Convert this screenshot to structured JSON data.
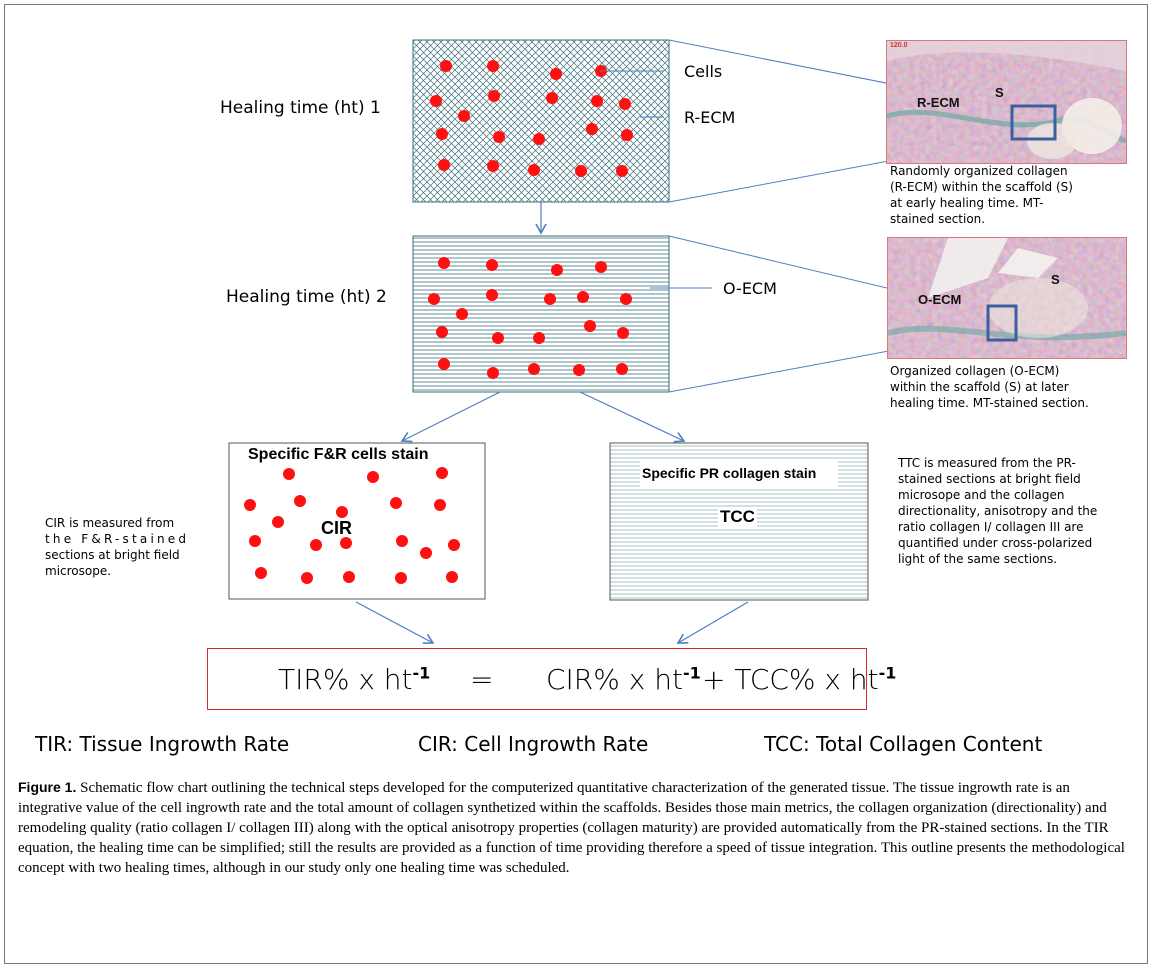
{
  "healing_time_1_label": "Healing time (ht) 1",
  "healing_time_2_label": "Healing time (ht) 2",
  "callouts": {
    "cells": "Cells",
    "r_ecm": "R-ECM",
    "o_ecm": "O-ECM"
  },
  "micrograph_1": {
    "scale_text": "120.0",
    "label_main": "R-ECM",
    "label_scaffold": "S",
    "caption_lines": [
      "Randomly organized collagen",
      "(R-ECM) within the scaffold (S)",
      "at early healing time. MT-",
      "stained section."
    ]
  },
  "micrograph_2": {
    "label_main": "O-ECM",
    "label_scaffold": "S",
    "caption_lines": [
      "Organized collagen (O-ECM)",
      "within the scaffold (S) at later",
      "healing time. MT-stained section."
    ]
  },
  "box_fr": {
    "title": "Specific F&R cells stain",
    "center_label": "CIR"
  },
  "box_pr": {
    "title": "Specific PR collagen stain",
    "center_label": "TCC"
  },
  "note_cir_lines": [
    "CIR is measured from",
    "the F&R-stained",
    "sections at bright field",
    "microsope."
  ],
  "note_ttc_lines": [
    "TTC is measured from the PR-",
    "stained sections at bright field",
    "microsope and the collagen",
    "directionality, anisotropy and the",
    "ratio collagen I/ collagen III are",
    "quantified under cross-polarized",
    "light of the same sections."
  ],
  "equation": {
    "lhs": "TIR% x ht",
    "equals": "=",
    "rhs1": "CIR% x ht",
    "plus": "+ TCC% x ht",
    "exponent": "-1"
  },
  "legend": {
    "tir": "TIR: Tissue Ingrowth Rate",
    "cir": "CIR: Cell Ingrowth Rate",
    "tcc": "TCC: Total Collagen Content"
  },
  "caption": {
    "label": "Figure 1.",
    "text": " Schematic flow chart outlining the technical steps developed for the computerized quantitative characterization of the generated tissue. The tissue ingrowth rate is an integrative value of the cell ingrowth rate and the total amount of collagen synthetized within the scaffolds. Besides those main metrics, the collagen organization (directionality) and remodeling quality (ratio collagen I/ collagen III) along with the optical anisotropy properties (collagen maturity) are provided automatically from the PR-stained sections. In the TIR equation, the healing time can be simplified; still the results are provided as a function of time providing therefore a speed of tissue integration. This outline presents the methodological concept with two healing times, although in our study only one healing time was scheduled."
  },
  "colors": {
    "dot": "#ff1010",
    "hatch": "#3a6f7a",
    "arrow": "#4f7fc0",
    "equation_border": "#d42a2a",
    "highlight_box": "#3b5fa0"
  }
}
